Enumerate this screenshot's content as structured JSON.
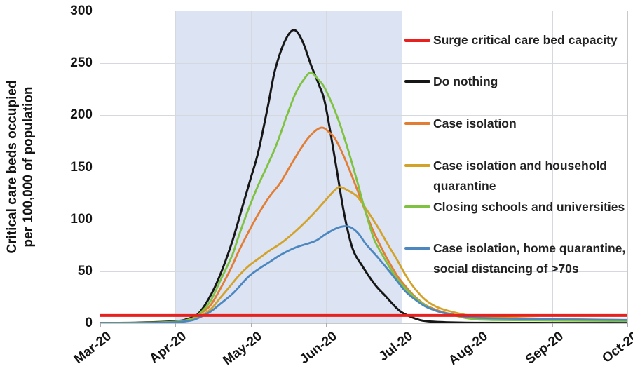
{
  "chart_data": {
    "type": "line",
    "title": "",
    "ylabel": "Critical care beds occupied per 100,000 of population",
    "ylabel_line1": "Critical care beds occupied",
    "ylabel_line2": "per 100,000 of population",
    "ylim": [
      0,
      300
    ],
    "y_ticks": [
      0,
      50,
      100,
      150,
      200,
      250,
      300
    ],
    "x_ticks": [
      "Mar-20",
      "Apr-20",
      "May-20",
      "Jun-20",
      "Jul-20",
      "Aug-20",
      "Sep-20",
      "Oct-20"
    ],
    "grid": true,
    "legend_position": "right",
    "shaded_region": {
      "from": "Apr-20",
      "to": "Jul-20",
      "from_index": 1,
      "to_index": 4,
      "color": "#dce3f2"
    },
    "series": [
      {
        "name": "Surge critical care bed capacity",
        "legend_label": "Surge critical care bed capacity",
        "color": "#e8201e",
        "hline": 7.5
      },
      {
        "name": "Do nothing",
        "legend_label": "Do nothing",
        "color": "#161616",
        "points": [
          [
            0,
            0.3
          ],
          [
            0.5,
            0.6
          ],
          [
            1,
            2
          ],
          [
            1.15,
            4
          ],
          [
            1.3,
            9
          ],
          [
            1.46,
            26
          ],
          [
            1.6,
            48
          ],
          [
            1.75,
            78
          ],
          [
            1.9,
            115
          ],
          [
            2,
            140
          ],
          [
            2.1,
            165
          ],
          [
            2.23,
            210
          ],
          [
            2.32,
            243
          ],
          [
            2.45,
            271
          ],
          [
            2.57,
            282
          ],
          [
            2.68,
            272
          ],
          [
            2.8,
            248
          ],
          [
            2.9,
            230
          ],
          [
            2.99,
            210
          ],
          [
            3.13,
            152
          ],
          [
            3.24,
            105
          ],
          [
            3.35,
            72
          ],
          [
            3.48,
            55
          ],
          [
            3.65,
            37
          ],
          [
            3.79,
            26
          ],
          [
            3.93,
            15
          ],
          [
            4.04,
            9
          ],
          [
            4.25,
            3
          ],
          [
            4.44,
            1.4
          ],
          [
            4.8,
            0.6
          ],
          [
            5.2,
            0.4
          ],
          [
            6,
            0.3
          ],
          [
            7,
            0.3
          ]
        ]
      },
      {
        "name": "Case isolation",
        "legend_label": "Case isolation",
        "color": "#e27d33",
        "points": [
          [
            0,
            0.2
          ],
          [
            0.6,
            0.4
          ],
          [
            1,
            1.5
          ],
          [
            1.2,
            4
          ],
          [
            1.3,
            8
          ],
          [
            1.46,
            17
          ],
          [
            1.6,
            34
          ],
          [
            1.75,
            55
          ],
          [
            1.83,
            68
          ],
          [
            1.97,
            88
          ],
          [
            2.1,
            105
          ],
          [
            2.25,
            122
          ],
          [
            2.39,
            135
          ],
          [
            2.57,
            157
          ],
          [
            2.76,
            178
          ],
          [
            2.93,
            188
          ],
          [
            3.05,
            183
          ],
          [
            3.13,
            176
          ],
          [
            3.25,
            158
          ],
          [
            3.41,
            129
          ],
          [
            3.53,
            106
          ],
          [
            3.63,
            88
          ],
          [
            3.78,
            66
          ],
          [
            3.85,
            57
          ],
          [
            3.95,
            45
          ],
          [
            4.05,
            36
          ],
          [
            4.16,
            27
          ],
          [
            4.31,
            18
          ],
          [
            4.46,
            13
          ],
          [
            4.62,
            9.5
          ],
          [
            4.9,
            6
          ],
          [
            5.2,
            4.8
          ],
          [
            6,
            3.6
          ],
          [
            7,
            2.6
          ]
        ]
      },
      {
        "name": "Case isolation and household quarantine",
        "legend_label": "Case isolation and household\nquarantine",
        "color": "#d3a229",
        "points": [
          [
            0,
            0.2
          ],
          [
            0.6,
            0.3
          ],
          [
            1,
            1.2
          ],
          [
            1.2,
            3
          ],
          [
            1.3,
            6
          ],
          [
            1.46,
            13
          ],
          [
            1.6,
            25
          ],
          [
            1.75,
            38
          ],
          [
            1.83,
            45
          ],
          [
            1.97,
            55
          ],
          [
            2.1,
            62
          ],
          [
            2.25,
            70
          ],
          [
            2.4,
            77
          ],
          [
            2.6,
            89
          ],
          [
            2.8,
            103
          ],
          [
            3,
            119
          ],
          [
            3.1,
            127
          ],
          [
            3.18,
            131
          ],
          [
            3.28,
            128
          ],
          [
            3.41,
            122
          ],
          [
            3.53,
            110
          ],
          [
            3.69,
            92
          ],
          [
            3.85,
            72
          ],
          [
            3.95,
            60
          ],
          [
            4.05,
            47
          ],
          [
            4.16,
            35
          ],
          [
            4.31,
            23
          ],
          [
            4.46,
            16
          ],
          [
            4.62,
            12
          ],
          [
            4.9,
            7.5
          ],
          [
            5.2,
            5.8
          ],
          [
            6,
            4.2
          ],
          [
            7,
            3.2
          ]
        ]
      },
      {
        "name": "Closing schools and universities",
        "legend_label": "Closing schools and universities",
        "color": "#7fc241",
        "points": [
          [
            0,
            0.2
          ],
          [
            0.6,
            0.5
          ],
          [
            1,
            1.5
          ],
          [
            1.2,
            4
          ],
          [
            1.3,
            8
          ],
          [
            1.46,
            21
          ],
          [
            1.6,
            42
          ],
          [
            1.75,
            65
          ],
          [
            1.83,
            82
          ],
          [
            1.97,
            110
          ],
          [
            2.1,
            133
          ],
          [
            2.32,
            168
          ],
          [
            2.48,
            200
          ],
          [
            2.6,
            222
          ],
          [
            2.72,
            236
          ],
          [
            2.8,
            241
          ],
          [
            2.9,
            234
          ],
          [
            2.99,
            225
          ],
          [
            3.16,
            196
          ],
          [
            3.29,
            167
          ],
          [
            3.41,
            137
          ],
          [
            3.5,
            113
          ],
          [
            3.62,
            84
          ],
          [
            3.69,
            73
          ],
          [
            3.85,
            53
          ],
          [
            3.95,
            42
          ],
          [
            4.16,
            26
          ],
          [
            4.31,
            17.5
          ],
          [
            4.46,
            12
          ],
          [
            4.62,
            9
          ],
          [
            4.9,
            4.5
          ],
          [
            5.2,
            3.2
          ],
          [
            6,
            2.6
          ],
          [
            7,
            2.2
          ]
        ]
      },
      {
        "name": "Case isolation, home quarantine, social distancing of >70s",
        "legend_label": "Case isolation, home quarantine,\nsocial distancing of >70s",
        "color": "#4d87c0",
        "points": [
          [
            0,
            0.2
          ],
          [
            0.6,
            0.3
          ],
          [
            1,
            1
          ],
          [
            1.2,
            2.5
          ],
          [
            1.3,
            5
          ],
          [
            1.46,
            11
          ],
          [
            1.6,
            19
          ],
          [
            1.75,
            28
          ],
          [
            1.83,
            34
          ],
          [
            1.97,
            45
          ],
          [
            2.1,
            52
          ],
          [
            2.25,
            59
          ],
          [
            2.4,
            66
          ],
          [
            2.6,
            73
          ],
          [
            2.85,
            79
          ],
          [
            3,
            86
          ],
          [
            3.16,
            92
          ],
          [
            3.3,
            93
          ],
          [
            3.42,
            87
          ],
          [
            3.53,
            76
          ],
          [
            3.69,
            63
          ],
          [
            3.85,
            49
          ],
          [
            3.95,
            40
          ],
          [
            4.05,
            31
          ],
          [
            4.16,
            24
          ],
          [
            4.31,
            16.5
          ],
          [
            4.46,
            12
          ],
          [
            4.62,
            9
          ],
          [
            4.9,
            5.8
          ],
          [
            5.2,
            4.8
          ],
          [
            6,
            3.8
          ],
          [
            7,
            3.2
          ]
        ]
      }
    ]
  }
}
